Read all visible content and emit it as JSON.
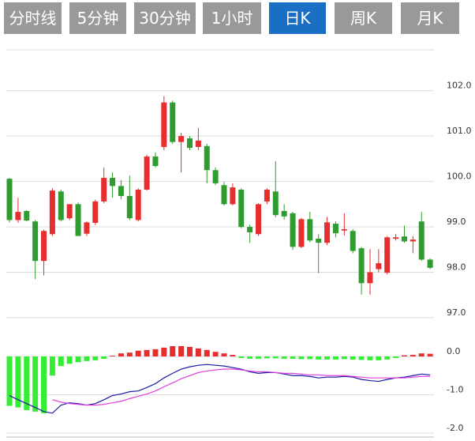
{
  "tabs": [
    {
      "label": "分时线",
      "active": false
    },
    {
      "label": "5分钟",
      "active": false
    },
    {
      "label": "30分钟",
      "active": false
    },
    {
      "label": "1小时",
      "active": false
    },
    {
      "label": "日K",
      "active": true
    },
    {
      "label": "周K",
      "active": false
    },
    {
      "label": "月K",
      "active": false
    }
  ],
  "chart_data": [
    {
      "type": "candlestick",
      "ylim": [
        97,
        102.9
      ],
      "grid": true,
      "yticks": [
        {
          "value": 97,
          "label": "97.0"
        },
        {
          "value": 98,
          "label": "98.0"
        },
        {
          "value": 99,
          "label": "99.0"
        },
        {
          "value": 100,
          "label": "100.0"
        },
        {
          "value": 101,
          "label": "101.0"
        },
        {
          "value": 102,
          "label": "102.0"
        }
      ],
      "up_color": "#e62e2e",
      "down_color": "#2e9c2e",
      "open": [
        100.06,
        99.15,
        99.35,
        99.12,
        98.25,
        98.84,
        99.78,
        99.19,
        99.5,
        98.85,
        99.09,
        99.56,
        100.08,
        99.9,
        99.68,
        99.15,
        99.82,
        100.55,
        100.76,
        101.74,
        100.87,
        100.95,
        100.76,
        100.78,
        100.25,
        99.92,
        99.5,
        99.82,
        99.0,
        98.84,
        99.56,
        99.78,
        99.35,
        99.3,
        98.56,
        99.17,
        98.74,
        98.65,
        99.07,
        98.92,
        98.91,
        98.53,
        97.76,
        98.07,
        97.99,
        98.74,
        98.79,
        98.68,
        99.12,
        98.28
      ],
      "high": [
        100.08,
        99.64,
        99.37,
        99.15,
        98.94,
        99.85,
        99.82,
        99.5,
        99.54,
        99.12,
        99.6,
        100.31,
        100.2,
        100.03,
        100.13,
        99.85,
        100.59,
        100.64,
        101.88,
        101.78,
        101.07,
        101.0,
        101.18,
        100.83,
        100.31,
        99.99,
        99.96,
        99.85,
        99.05,
        99.52,
        99.85,
        100.45,
        99.5,
        99.33,
        99.2,
        99.33,
        98.84,
        99.22,
        99.12,
        99.3,
        98.95,
        98.56,
        98.51,
        98.51,
        98.8,
        98.84,
        99.03,
        98.8,
        99.33,
        98.31
      ],
      "low": [
        99.1,
        99.09,
        99.12,
        97.85,
        97.93,
        98.8,
        99.12,
        99.15,
        98.8,
        98.8,
        99.04,
        99.52,
        99.64,
        99.61,
        99.15,
        99.12,
        99.8,
        100.31,
        100.69,
        100.83,
        100.2,
        100.69,
        100.69,
        99.96,
        99.92,
        99.47,
        99.47,
        98.97,
        98.65,
        98.8,
        99.5,
        99.21,
        99.16,
        98.49,
        98.53,
        98.66,
        97.98,
        98.6,
        98.77,
        98.81,
        98.42,
        97.51,
        97.51,
        98.0,
        97.95,
        98.7,
        98.65,
        98.42,
        98.25,
        98.07
      ],
      "close": [
        99.15,
        99.33,
        99.14,
        98.25,
        98.91,
        99.8,
        99.15,
        99.5,
        98.8,
        99.1,
        99.56,
        100.08,
        99.9,
        99.68,
        99.19,
        99.82,
        100.55,
        100.34,
        101.74,
        100.87,
        101.0,
        100.74,
        100.9,
        100.25,
        99.96,
        99.5,
        99.87,
        99.0,
        98.88,
        99.5,
        99.82,
        99.26,
        99.23,
        98.56,
        99.17,
        98.7,
        98.65,
        99.1,
        98.86,
        98.95,
        98.47,
        97.76,
        98.0,
        98.2,
        98.77,
        98.77,
        98.68,
        98.72,
        98.28,
        98.1
      ]
    },
    {
      "type": "macd",
      "ylim": [
        -2,
        0.64
      ],
      "grid": true,
      "yticks": [
        {
          "value": -2,
          "label": "-2.0"
        },
        {
          "value": -1,
          "label": "-1.0"
        },
        {
          "value": 0,
          "label": "0.0"
        }
      ],
      "up_color": "#e62e2e",
      "down_color": "#33ee33",
      "dif_color": "#1a1aa0",
      "dea_color": "#e040e0",
      "histogram": [
        -1.29,
        -1.33,
        -1.4,
        -1.44,
        -1.48,
        -0.5,
        -0.25,
        -0.19,
        -0.15,
        -0.12,
        -0.1,
        -0.06,
        0.02,
        0.08,
        0.1,
        0.15,
        0.17,
        0.19,
        0.23,
        0.27,
        0.27,
        0.25,
        0.21,
        0.17,
        0.12,
        0.08,
        0.04,
        -0.04,
        -0.06,
        -0.06,
        -0.05,
        -0.05,
        -0.06,
        -0.06,
        -0.07,
        -0.07,
        -0.08,
        -0.08,
        -0.08,
        -0.07,
        -0.08,
        -0.09,
        -0.1,
        -0.1,
        -0.08,
        -0.04,
        0.03,
        0.04,
        0.08,
        0.07
      ],
      "dif": [
        -1.02,
        -1.13,
        -1.23,
        -1.33,
        -1.44,
        -1.48,
        -1.27,
        -1.21,
        -1.23,
        -1.27,
        -1.23,
        -1.13,
        -1.02,
        -0.98,
        -0.92,
        -0.9,
        -0.81,
        -0.71,
        -0.56,
        -0.44,
        -0.33,
        -0.27,
        -0.23,
        -0.21,
        -0.23,
        -0.25,
        -0.29,
        -0.33,
        -0.4,
        -0.44,
        -0.42,
        -0.42,
        -0.46,
        -0.5,
        -0.5,
        -0.52,
        -0.56,
        -0.54,
        -0.54,
        -0.52,
        -0.54,
        -0.6,
        -0.63,
        -0.65,
        -0.6,
        -0.56,
        -0.54,
        -0.5,
        -0.46,
        -0.48
      ],
      "dea": [
        null,
        null,
        null,
        null,
        null,
        -1.13,
        -1.19,
        -1.23,
        -1.25,
        -1.27,
        -1.27,
        -1.25,
        -1.21,
        -1.17,
        -1.1,
        -1.04,
        -0.98,
        -0.9,
        -0.79,
        -0.69,
        -0.58,
        -0.5,
        -0.42,
        -0.38,
        -0.35,
        -0.33,
        -0.33,
        -0.35,
        -0.38,
        -0.4,
        -0.4,
        -0.42,
        -0.44,
        -0.44,
        -0.46,
        -0.48,
        -0.48,
        -0.5,
        -0.5,
        -0.5,
        -0.52,
        -0.54,
        -0.56,
        -0.56,
        -0.56,
        -0.56,
        -0.56,
        -0.54,
        -0.52,
        -0.52
      ]
    }
  ]
}
